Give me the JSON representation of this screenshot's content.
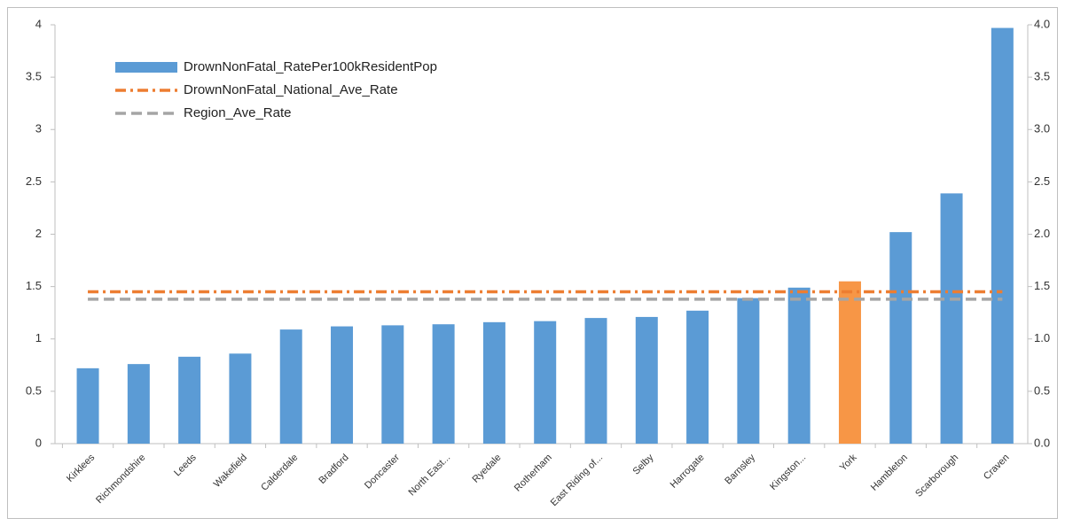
{
  "chart_data": {
    "type": "bar",
    "categories": [
      "Kirklees",
      "Richmondshire",
      "Leeds",
      "Wakefield",
      "Calderdale",
      "Bradford",
      "Doncaster",
      "North East...",
      "Ryedale",
      "Rotherham",
      "East Riding of...",
      "Selby",
      "Harrogate",
      "Barnsley",
      "Kingston...",
      "York",
      "Hambleton",
      "Scarborough",
      "Craven"
    ],
    "series": [
      {
        "name": "DrownNonFatal_RatePer100kResidentPop",
        "type": "bar",
        "color": "#5b9bd5",
        "colors": [
          "#5b9bd5",
          "#5b9bd5",
          "#5b9bd5",
          "#5b9bd5",
          "#5b9bd5",
          "#5b9bd5",
          "#5b9bd5",
          "#5b9bd5",
          "#5b9bd5",
          "#5b9bd5",
          "#5b9bd5",
          "#5b9bd5",
          "#5b9bd5",
          "#5b9bd5",
          "#5b9bd5",
          "#f79646",
          "#5b9bd5",
          "#5b9bd5",
          "#5b9bd5"
        ],
        "values": [
          0.72,
          0.76,
          0.83,
          0.86,
          1.09,
          1.12,
          1.13,
          1.14,
          1.16,
          1.17,
          1.2,
          1.21,
          1.27,
          1.39,
          1.49,
          1.55,
          2.02,
          2.39,
          3.97
        ]
      },
      {
        "name": "DrownNonFatal_National_Ave_Rate",
        "type": "line",
        "dash": "dash-dot",
        "color": "#ed7d31",
        "values": [
          1.45,
          1.45,
          1.45,
          1.45,
          1.45,
          1.45,
          1.45,
          1.45,
          1.45,
          1.45,
          1.45,
          1.45,
          1.45,
          1.45,
          1.45,
          1.45,
          1.45,
          1.45,
          1.45
        ]
      },
      {
        "name": "Region_Ave_Rate",
        "type": "line",
        "dash": "dash",
        "color": "#a5a5a5",
        "values": [
          1.38,
          1.38,
          1.38,
          1.38,
          1.38,
          1.38,
          1.38,
          1.38,
          1.38,
          1.38,
          1.38,
          1.38,
          1.38,
          1.38,
          1.38,
          1.38,
          1.38,
          1.38,
          1.38
        ]
      }
    ],
    "ylim": [
      0,
      4
    ],
    "yticks": [
      0,
      0.5,
      1,
      1.5,
      2,
      2.5,
      3,
      3.5,
      4
    ],
    "y2lim": [
      0,
      4
    ],
    "y2ticks": [
      {
        "value": 0,
        "label": "0.0"
      },
      0.5,
      {
        "value": 1,
        "label": "1.0"
      },
      1.5,
      {
        "value": 2,
        "label": "2.0"
      },
      2.5,
      {
        "value": 3,
        "label": "3.0"
      },
      3.5,
      {
        "value": 4,
        "label": "4.0"
      }
    ],
    "grid": false,
    "legend": "top-left"
  }
}
